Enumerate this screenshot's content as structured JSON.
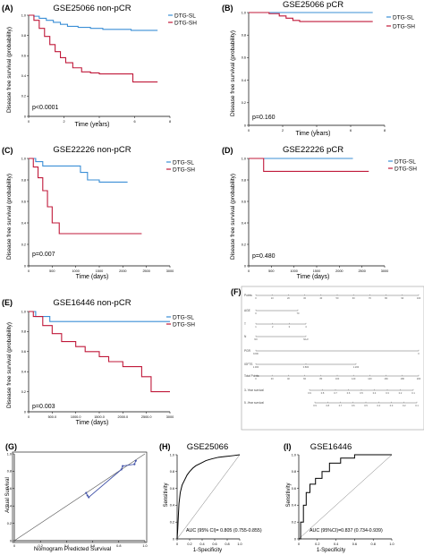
{
  "colors": {
    "sl": "#3b8fd6",
    "sh": "#c0193a",
    "axis": "#000000",
    "nomo": "#888888",
    "diag": "#4455aa"
  },
  "chart_data": [
    {
      "panel": "(A)",
      "type": "line",
      "title": "GSE25066 non-pCR",
      "xlabel": "Time (years)",
      "ylabel": "Disease free survival (probability)",
      "xlim": [
        0,
        8
      ],
      "ylim": [
        0,
        1
      ],
      "xticks": [
        "0",
        "2",
        "4",
        "6",
        "8"
      ],
      "yticks": [
        "0",
        "0.2",
        "0.4",
        "0.6",
        "0.8",
        "1.0"
      ],
      "pvalue": "p<0.0001",
      "legend": "top-right",
      "series": [
        {
          "name": "DTG-SL",
          "color": "sl",
          "x": [
            0,
            0.3,
            0.6,
            1.0,
            1.4,
            1.8,
            2.2,
            2.8,
            3.5,
            4.2,
            5.0,
            5.8,
            6.6,
            7.3
          ],
          "y": [
            1.0,
            0.99,
            0.97,
            0.95,
            0.93,
            0.91,
            0.89,
            0.88,
            0.87,
            0.86,
            0.86,
            0.85,
            0.85,
            0.85
          ]
        },
        {
          "name": "DTG-SH",
          "color": "sh",
          "x": [
            0,
            0.3,
            0.6,
            0.9,
            1.2,
            1.5,
            1.8,
            2.1,
            2.5,
            3.0,
            3.5,
            4.0,
            4.6,
            5.4,
            5.9,
            7.3
          ],
          "y": [
            1.0,
            0.95,
            0.87,
            0.79,
            0.71,
            0.64,
            0.58,
            0.53,
            0.48,
            0.44,
            0.43,
            0.42,
            0.42,
            0.42,
            0.34,
            0.34
          ]
        }
      ]
    },
    {
      "panel": "(B)",
      "type": "line",
      "title": "GSE25066 pCR",
      "xlabel": "Time (years)",
      "ylabel": "Disease free survival (probability)",
      "xlim": [
        0,
        8
      ],
      "ylim": [
        0,
        1
      ],
      "xticks": [
        "0",
        "2",
        "4",
        "6",
        "8"
      ],
      "yticks": [
        "0",
        "0.2",
        "0.4",
        "0.6",
        "0.8",
        "1.0"
      ],
      "pvalue": "p=0.160",
      "legend": "top-right",
      "series": [
        {
          "name": "DTG-SL",
          "color": "sl",
          "x": [
            0,
            7.3
          ],
          "y": [
            1.0,
            1.0
          ]
        },
        {
          "name": "DTG-SH",
          "color": "sh",
          "x": [
            0,
            1.2,
            1.8,
            2.2,
            2.6,
            3.0,
            4.0,
            7.3
          ],
          "y": [
            1.0,
            0.99,
            0.97,
            0.95,
            0.93,
            0.92,
            0.92,
            0.92
          ]
        }
      ]
    },
    {
      "panel": "(C)",
      "type": "line",
      "title": "GSE22226 non-pCR",
      "xlabel": "Time (days)",
      "ylabel": "Disease free survival (probability)",
      "xlim": [
        0,
        3000
      ],
      "ylim": [
        0,
        1
      ],
      "xticks": [
        "0",
        "500",
        "1000",
        "1500",
        "2000",
        "2500",
        "3000"
      ],
      "yticks": [
        "0",
        "0.2",
        "0.4",
        "0.6",
        "0.8",
        "1.0"
      ],
      "pvalue": "p=0.007",
      "legend": "top-right",
      "series": [
        {
          "name": "DTG-SL",
          "color": "sl",
          "x": [
            0,
            150,
            300,
            700,
            1100,
            1250,
            1500,
            2100
          ],
          "y": [
            1.0,
            0.97,
            0.93,
            0.93,
            0.87,
            0.8,
            0.78,
            0.78
          ]
        },
        {
          "name": "DTG-SH",
          "color": "sh",
          "x": [
            0,
            100,
            200,
            300,
            400,
            500,
            650,
            2400
          ],
          "y": [
            1.0,
            0.92,
            0.82,
            0.7,
            0.55,
            0.4,
            0.3,
            0.3
          ]
        }
      ]
    },
    {
      "panel": "(D)",
      "type": "line",
      "title": "GSE22226 pCR",
      "xlabel": "Time (days)",
      "ylabel": "Disease free survival (probability)",
      "xlim": [
        0,
        3000
      ],
      "ylim": [
        0,
        1
      ],
      "xticks": [
        "0",
        "500",
        "1000",
        "1500",
        "2000",
        "2500",
        "3000"
      ],
      "yticks": [
        "0",
        "0.2",
        "0.4",
        "0.6",
        "0.8",
        "1.0"
      ],
      "pvalue": "p=0.480",
      "legend": "top-right",
      "series": [
        {
          "name": "DTG-SL",
          "color": "sl",
          "x": [
            0,
            2300
          ],
          "y": [
            1.0,
            1.0
          ]
        },
        {
          "name": "DTG-SH",
          "color": "sh",
          "x": [
            0,
            330,
            2650
          ],
          "y": [
            1.0,
            0.88,
            0.88
          ]
        }
      ]
    },
    {
      "panel": "(E)",
      "type": "line",
      "title": "GSE16446 non-pCR",
      "xlabel": "Time (days)",
      "ylabel": "Disease free survival (probability)",
      "xlim": [
        0,
        3000
      ],
      "ylim": [
        0,
        1
      ],
      "xticks": [
        "0",
        "500.0",
        "1000.0",
        "1500.0",
        "2000.0",
        "2500.0",
        "3000"
      ],
      "yticks": [
        "0",
        "0.2",
        "0.4",
        "0.6",
        "0.8",
        "1.0"
      ],
      "pvalue": "p=0.003",
      "legend": "top-right",
      "series": [
        {
          "name": "DTG-SL",
          "color": "sl",
          "x": [
            0,
            150,
            450,
            3000
          ],
          "y": [
            1.0,
            0.95,
            0.9,
            0.9
          ]
        },
        {
          "name": "DTG-SH",
          "color": "sh",
          "x": [
            0,
            100,
            300,
            500,
            700,
            1000,
            1200,
            1500,
            1700,
            2000,
            2400,
            2600,
            3000
          ],
          "y": [
            1.0,
            0.95,
            0.86,
            0.78,
            0.7,
            0.65,
            0.6,
            0.55,
            0.5,
            0.45,
            0.35,
            0.2,
            0.2
          ]
        }
      ]
    },
    {
      "panel": "(G)",
      "type": "scatter",
      "xlabel": "Nomogram Predicted Survival",
      "ylabel": "Actual Survival",
      "xlim": [
        0,
        1
      ],
      "ylim": [
        0,
        1
      ],
      "xticks": [
        "0",
        "0.2",
        "0.4",
        "0.6",
        "0.8",
        "1.0"
      ],
      "yticks": [
        "0",
        "0.2",
        "0.4",
        "0.6",
        "0.8",
        "1.0"
      ],
      "series": [
        {
          "name": "calibration",
          "x": [
            0.55,
            0.56,
            0.57,
            0.82,
            0.83,
            0.92,
            0.93
          ],
          "y": [
            0.55,
            0.52,
            0.5,
            0.82,
            0.86,
            0.88,
            0.92
          ]
        }
      ]
    },
    {
      "panel": "(H)",
      "type": "line",
      "title": "GSE25066",
      "xlabel": "1-Specificity",
      "ylabel": "Sensitivity",
      "xlim": [
        0,
        1
      ],
      "ylim": [
        0,
        1
      ],
      "xticks": [
        "0",
        "0.2",
        "0.4",
        "0.6",
        "0.8",
        "1.0"
      ],
      "yticks": [
        "0",
        "0.2",
        "0.4",
        "0.6",
        "0.8",
        "1.0"
      ],
      "annotation": "AUC (95% CI)= 0.805 (0.755-0.855)",
      "series": [
        {
          "name": "ROC",
          "x": [
            0,
            0.01,
            0.02,
            0.03,
            0.05,
            0.08,
            0.12,
            0.16,
            0.2,
            0.25,
            0.3,
            0.38,
            0.46,
            0.55,
            0.66,
            0.78,
            0.9,
            1.0
          ],
          "y": [
            0,
            0.12,
            0.28,
            0.42,
            0.55,
            0.64,
            0.7,
            0.76,
            0.8,
            0.84,
            0.87,
            0.9,
            0.93,
            0.95,
            0.97,
            0.98,
            0.99,
            1.0
          ]
        }
      ]
    },
    {
      "panel": "(I)",
      "type": "line",
      "title": "GSE16446",
      "xlabel": "1-Specificity",
      "ylabel": "Sensitivity",
      "xlim": [
        0,
        1
      ],
      "ylim": [
        0,
        1
      ],
      "xticks": [
        "0",
        "0.2",
        "0.4",
        "0.6",
        "0.8",
        "1.0"
      ],
      "yticks": [
        "0",
        "0.2",
        "0.4",
        "0.6",
        "0.8",
        "1.0"
      ],
      "annotation": "AUC (95%CI)=0.837 (0.734-0.939)",
      "series": [
        {
          "name": "ROC",
          "x": [
            0,
            0.02,
            0.02,
            0.05,
            0.05,
            0.08,
            0.08,
            0.12,
            0.12,
            0.18,
            0.18,
            0.25,
            0.25,
            0.33,
            0.33,
            0.45,
            0.45,
            0.6,
            0.6,
            1.0
          ],
          "y": [
            0,
            0,
            0.2,
            0.2,
            0.4,
            0.4,
            0.55,
            0.55,
            0.65,
            0.65,
            0.72,
            0.72,
            0.8,
            0.8,
            0.9,
            0.9,
            0.96,
            0.96,
            1.0,
            1.0
          ]
        }
      ]
    }
  ],
  "nomogram": {
    "panel": "(F)",
    "rows": [
      "Points",
      "AGE",
      "T",
      "N",
      "PGR",
      "IGFTS",
      "Total Points",
      "3- Year survival",
      "5 -Year survival"
    ],
    "points_ticks": [
      "0",
      "10",
      "20",
      "30",
      "40",
      "50",
      "60",
      "70",
      "80",
      "90",
      "100"
    ],
    "age_ticks": [
      "0",
      "70"
    ],
    "t_ticks": [
      "1",
      "2",
      "3",
      "4"
    ],
    "n_ticks": [
      "N0",
      "N1/2"
    ],
    "pgr_ticks": [
      "1000",
      "0"
    ],
    "igfts_ticks": [
      "1.000",
      "0.800",
      "1.200"
    ],
    "total_ticks": [
      "0",
      "20",
      "40",
      "60",
      "80",
      "100",
      "120",
      "140",
      "160",
      "180",
      "200"
    ],
    "surv3_ticks": [
      "0.9",
      "0.8",
      "0.7",
      "0.6",
      "0.5",
      "0.4",
      "0.3",
      "0.2",
      "0.1"
    ],
    "surv5_ticks": [
      "0.9",
      "0.8",
      "0.7",
      "0.6",
      "0.5",
      "0.4",
      "0.3",
      "0.2",
      "0.1"
    ]
  }
}
